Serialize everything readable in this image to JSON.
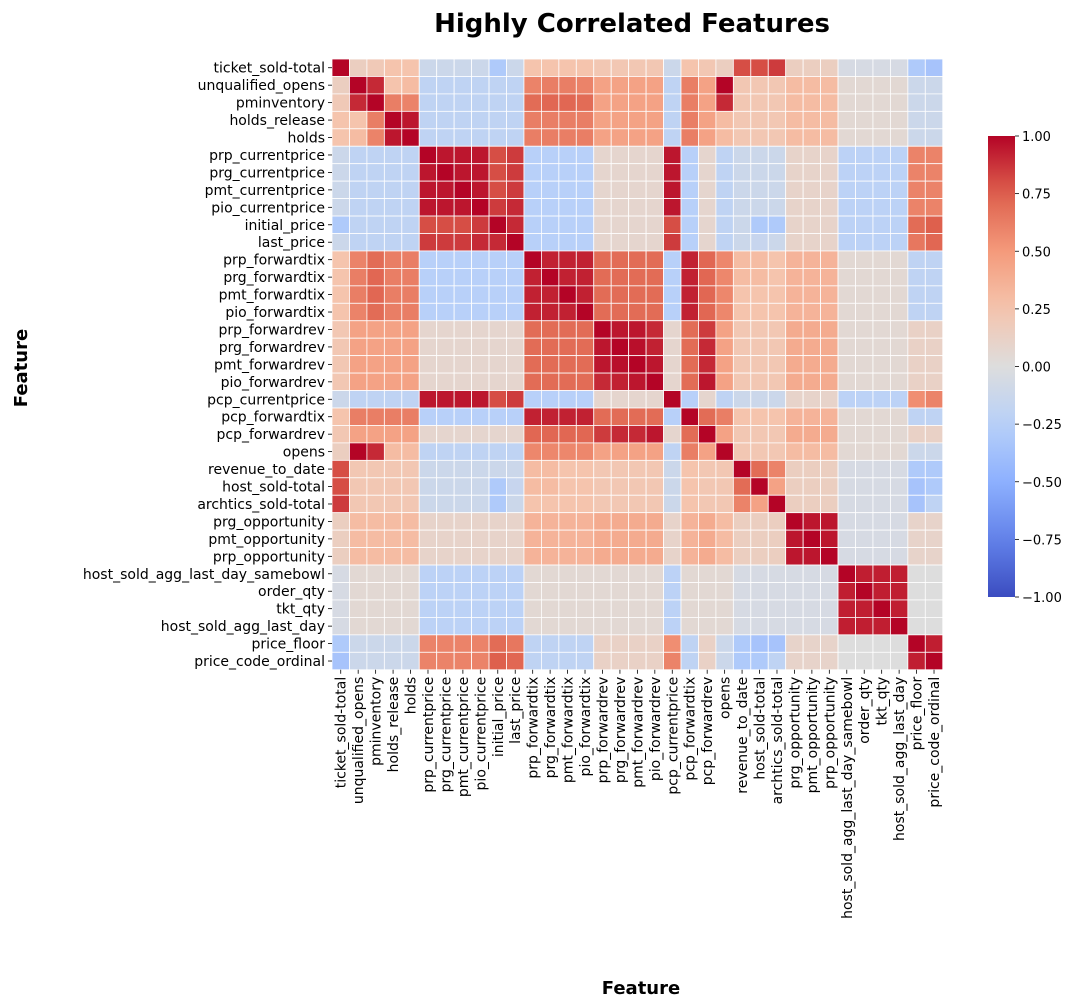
{
  "chart_data": {
    "type": "heatmap",
    "title": "Highly Correlated Features",
    "xlabel": "Feature",
    "ylabel": "Feature",
    "colorbar": {
      "min": -1.0,
      "max": 1.0,
      "ticks": [
        "1.00",
        "0.75",
        "0.50",
        "0.25",
        "0.00",
        "−0.25",
        "−0.50",
        "−0.75",
        "−1.00"
      ],
      "tick_values": [
        1.0,
        0.75,
        0.5,
        0.25,
        0.0,
        -0.25,
        -0.5,
        -0.75,
        -1.0
      ]
    },
    "colormap": "coolwarm",
    "labels": [
      "ticket_sold-total",
      "unqualified_opens",
      "pminventory",
      "holds_release",
      "holds",
      "prp_currentprice",
      "prg_currentprice",
      "pmt_currentprice",
      "pio_currentprice",
      "initial_price",
      "last_price",
      "prp_forwardtix",
      "prg_forwardtix",
      "pmt_forwardtix",
      "pio_forwardtix",
      "prp_forwardrev",
      "prg_forwardrev",
      "pmt_forwardrev",
      "pio_forwardrev",
      "pcp_currentprice",
      "pcp_forwardtix",
      "pcp_forwardrev",
      "opens",
      "revenue_to_date",
      "host_sold-total",
      "archtics_sold-total",
      "prg_opportunity",
      "pmt_opportunity",
      "prp_opportunity",
      "host_sold_agg_last_day_samebowl",
      "order_qty",
      "tkt_qty",
      "host_sold_agg_last_day",
      "price_floor",
      "price_code_ordinal"
    ],
    "groups": {
      "A": [
        1,
        2,
        3,
        4,
        22
      ],
      "P": [
        5,
        6,
        7,
        8,
        9,
        10,
        19
      ],
      "F": [
        11,
        12,
        13,
        14,
        20
      ],
      "R": [
        15,
        16,
        17,
        18,
        21
      ],
      "S": [
        0,
        23,
        24,
        25
      ],
      "O": [
        26,
        27,
        28
      ],
      "Q": [
        29,
        30,
        31,
        32
      ],
      "L": [
        33,
        34
      ]
    },
    "group_values": {
      "S-A": 0.22,
      "S-P": -0.12,
      "S-F": 0.25,
      "S-R": 0.22,
      "S-O": 0.15,
      "S-Q": -0.05,
      "S-L": -0.3,
      "A-P": -0.2,
      "A-F": 0.62,
      "A-R": 0.45,
      "A-O": 0.3,
      "A-Q": 0.05,
      "A-L": -0.12,
      "P-F": -0.25,
      "P-R": 0.08,
      "P-O": 0.1,
      "P-Q": -0.22,
      "P-L": 0.6,
      "F-R": 0.7,
      "F-O": 0.35,
      "F-Q": 0.05,
      "F-L": -0.2,
      "R-O": 0.4,
      "R-Q": 0.05,
      "R-L": 0.12,
      "O-Q": -0.05,
      "O-L": 0.1,
      "Q-L": 0.0,
      "S-S": 0.6,
      "A-A": 0.7,
      "P-P": 0.95,
      "F-F": 0.92,
      "R-R": 0.92,
      "O-O": 0.95,
      "Q-Q": 0.93,
      "L-L": 0.93
    },
    "overrides": [
      [
        1,
        2,
        0.9
      ],
      [
        1,
        22,
        1.0
      ],
      [
        2,
        22,
        0.9
      ],
      [
        3,
        4,
        0.95
      ],
      [
        1,
        3,
        0.25
      ],
      [
        1,
        4,
        0.3
      ],
      [
        2,
        3,
        0.62
      ],
      [
        2,
        4,
        0.6
      ],
      [
        3,
        22,
        0.3
      ],
      [
        4,
        22,
        0.3
      ],
      [
        0,
        23,
        0.8
      ],
      [
        0,
        24,
        0.8
      ],
      [
        0,
        25,
        0.85
      ],
      [
        23,
        24,
        0.7
      ],
      [
        23,
        25,
        0.6
      ],
      [
        24,
        25,
        0.45
      ],
      [
        0,
        1,
        0.15
      ],
      [
        0,
        2,
        0.2
      ],
      [
        0,
        3,
        0.25
      ],
      [
        0,
        4,
        0.25
      ],
      [
        0,
        22,
        0.15
      ],
      [
        9,
        33,
        0.7
      ],
      [
        9,
        34,
        0.75
      ],
      [
        10,
        33,
        0.65
      ],
      [
        10,
        34,
        0.72
      ],
      [
        19,
        33,
        0.55
      ],
      [
        19,
        34,
        0.6
      ],
      [
        9,
        0,
        -0.3
      ],
      [
        9,
        24,
        -0.3
      ],
      [
        9,
        25,
        -0.3
      ],
      [
        10,
        24,
        -0.15
      ],
      [
        0,
        33,
        -0.3
      ],
      [
        0,
        34,
        -0.35
      ],
      [
        24,
        33,
        -0.35
      ],
      [
        25,
        33,
        -0.35
      ],
      [
        24,
        34,
        -0.3
      ],
      [
        25,
        34,
        -0.2
      ],
      [
        5,
        9,
        0.8
      ],
      [
        6,
        9,
        0.8
      ],
      [
        7,
        9,
        0.8
      ],
      [
        8,
        9,
        0.85
      ],
      [
        5,
        10,
        0.85
      ],
      [
        6,
        10,
        0.85
      ],
      [
        7,
        10,
        0.85
      ],
      [
        8,
        10,
        0.9
      ],
      [
        9,
        10,
        0.9
      ],
      [
        9,
        19,
        0.8
      ],
      [
        10,
        19,
        0.85
      ],
      [
        15,
        16,
        0.95
      ],
      [
        15,
        17,
        0.95
      ],
      [
        16,
        17,
        0.97
      ],
      [
        15,
        18,
        0.9
      ],
      [
        16,
        18,
        0.92
      ],
      [
        17,
        18,
        0.95
      ],
      [
        18,
        21,
        0.95
      ],
      [
        17,
        21,
        0.9
      ],
      [
        16,
        21,
        0.9
      ],
      [
        15,
        21,
        0.85
      ],
      [
        20,
        15,
        0.7
      ],
      [
        20,
        16,
        0.7
      ],
      [
        20,
        17,
        0.7
      ],
      [
        20,
        18,
        0.7
      ],
      [
        11,
        21,
        0.72
      ],
      [
        12,
        21,
        0.72
      ],
      [
        13,
        21,
        0.72
      ],
      [
        14,
        21,
        0.72
      ],
      [
        22,
        11,
        0.58
      ],
      [
        22,
        12,
        0.58
      ],
      [
        22,
        13,
        0.58
      ],
      [
        22,
        14,
        0.58
      ],
      [
        2,
        11,
        0.7
      ],
      [
        2,
        12,
        0.72
      ],
      [
        2,
        13,
        0.72
      ],
      [
        2,
        14,
        0.7
      ],
      [
        1,
        11,
        0.6
      ],
      [
        1,
        12,
        0.62
      ],
      [
        1,
        13,
        0.62
      ],
      [
        1,
        14,
        0.6
      ],
      [
        23,
        11,
        0.3
      ],
      [
        23,
        12,
        0.3
      ],
      [
        24,
        11,
        0.3
      ],
      [
        24,
        12,
        0.3
      ],
      [
        25,
        11,
        0.25
      ],
      [
        25,
        12,
        0.25
      ]
    ]
  }
}
